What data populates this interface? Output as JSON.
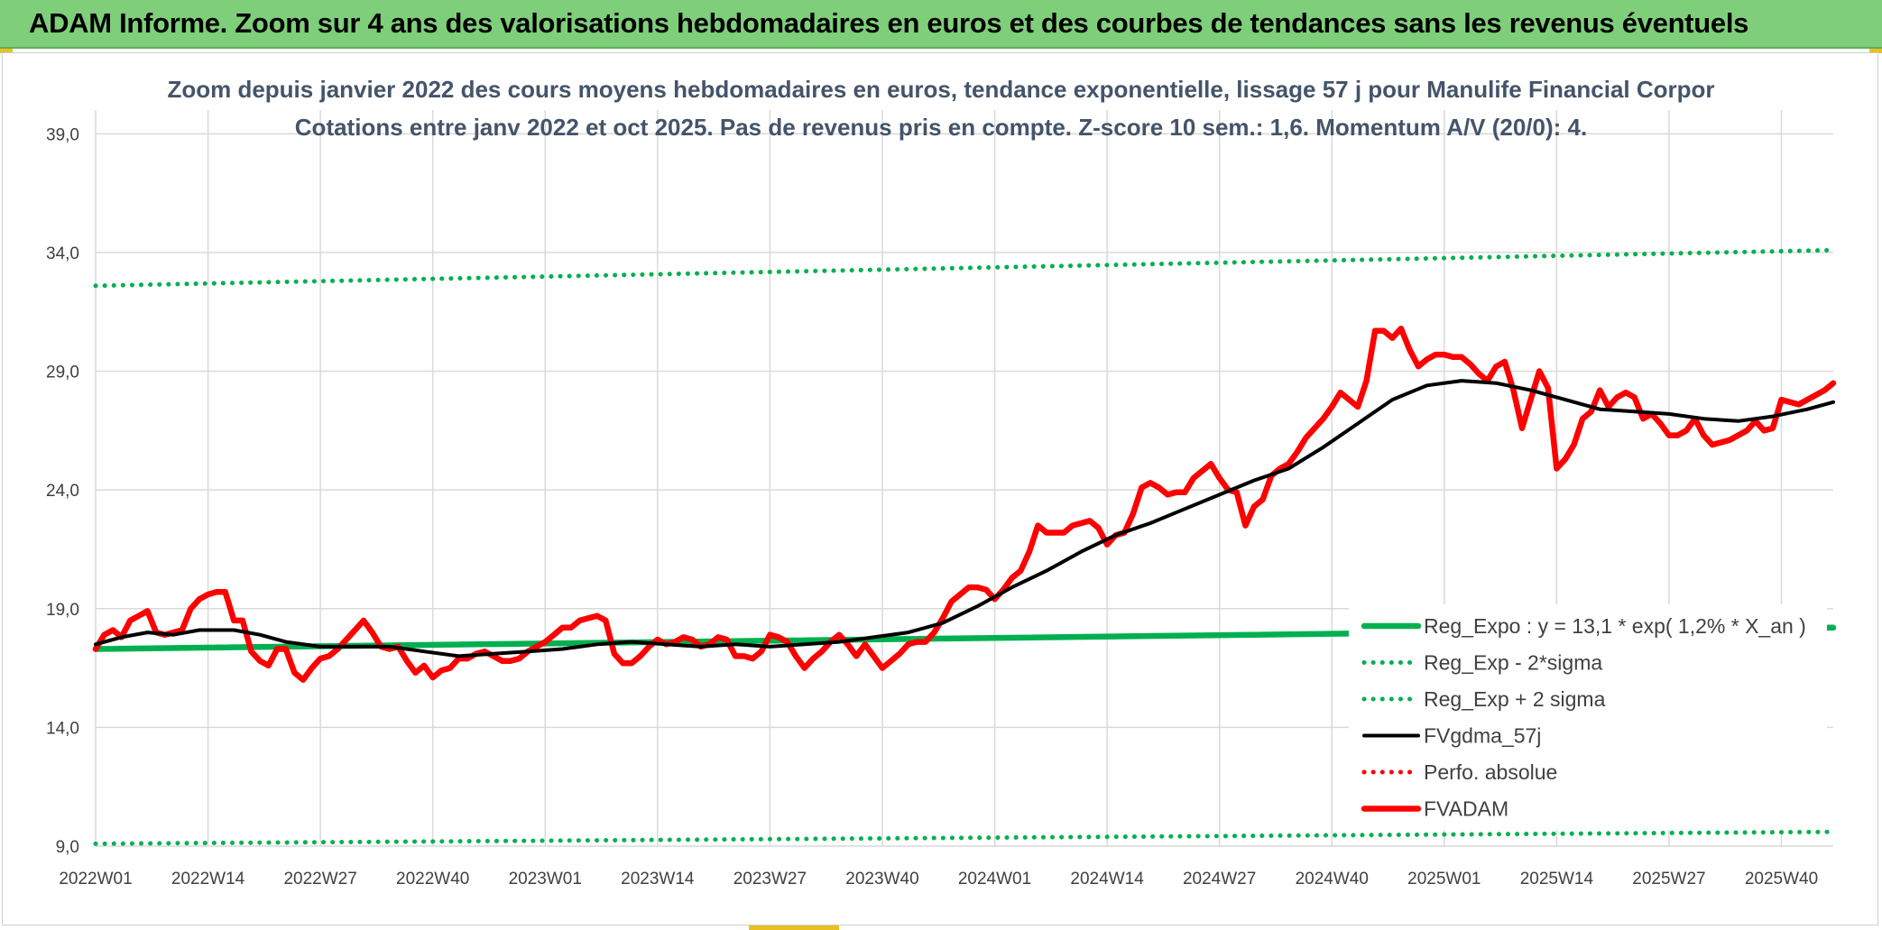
{
  "header": {
    "title": "ADAM Informe. Zoom sur 4 ans des valorisations hebdomadaires en euros et des courbes de tendances sans les revenus éventuels"
  },
  "chart_data": {
    "type": "line",
    "title": "Zoom depuis janvier 2022 des cours moyens hebdomadaires en euros, tendance exponentielle, lissage 57 j pour Manulife Financial Corpor",
    "subtitle": "Cotations entre janv 2022 et oct 2025. Pas de revenus pris en compte. Z-score 10 sem.: 1,6. Momentum A/V (20/0): 4.",
    "xlabel": "",
    "ylabel": "",
    "ylim": [
      9,
      40
    ],
    "y_ticks": [
      "39,0",
      "34,0",
      "29,0",
      "24,0",
      "19,0",
      "14,0",
      "9,0"
    ],
    "y_tick_values": [
      39,
      34,
      29,
      24,
      19,
      14,
      9
    ],
    "x_tick_labels": [
      "2022W01",
      "2022W14",
      "2022W27",
      "2022W40",
      "2023W01",
      "2023W14",
      "2023W27",
      "2023W40",
      "2024W01",
      "2024W14",
      "2024W27",
      "2024W40",
      "2025W01",
      "2025W14",
      "2025W27",
      "2025W40"
    ],
    "x_tick_index": [
      0,
      13,
      26,
      39,
      52,
      65,
      78,
      91,
      104,
      117,
      130,
      143,
      156,
      169,
      182,
      195
    ],
    "x_max_index": 201,
    "grid": true,
    "legend_position": "right",
    "series": [
      {
        "name": "Reg_Expo : y = 13,1 * exp( 1,2% *  X_an )",
        "style": "thick",
        "color": "#00b050",
        "points": [
          [
            0,
            17.3
          ],
          [
            201,
            18.2
          ]
        ]
      },
      {
        "name": "Reg_Exp - 2*sigma",
        "style": "dotted",
        "color": "#00b050",
        "points": [
          [
            0,
            9.1
          ],
          [
            201,
            9.6
          ]
        ]
      },
      {
        "name": "Reg_Exp + 2 sigma",
        "style": "dotted",
        "color": "#00b050",
        "points": [
          [
            0,
            32.6
          ],
          [
            201,
            34.1
          ]
        ]
      },
      {
        "name": "FVgdma_57j",
        "style": "solid",
        "color": "#000000",
        "points": [
          [
            0,
            17.5
          ],
          [
            3,
            17.8
          ],
          [
            6,
            18.0
          ],
          [
            9,
            17.9
          ],
          [
            12,
            18.1
          ],
          [
            16,
            18.1
          ],
          [
            19,
            17.9
          ],
          [
            22,
            17.6
          ],
          [
            26,
            17.4
          ],
          [
            30,
            17.4
          ],
          [
            34,
            17.4
          ],
          [
            38,
            17.2
          ],
          [
            42,
            17.0
          ],
          [
            46,
            17.1
          ],
          [
            50,
            17.2
          ],
          [
            54,
            17.3
          ],
          [
            58,
            17.5
          ],
          [
            62,
            17.6
          ],
          [
            66,
            17.5
          ],
          [
            70,
            17.4
          ],
          [
            74,
            17.5
          ],
          [
            78,
            17.4
          ],
          [
            82,
            17.5
          ],
          [
            86,
            17.6
          ],
          [
            90,
            17.8
          ],
          [
            94,
            18.0
          ],
          [
            98,
            18.4
          ],
          [
            102,
            19.1
          ],
          [
            106,
            19.9
          ],
          [
            110,
            20.6
          ],
          [
            114,
            21.4
          ],
          [
            118,
            22.1
          ],
          [
            122,
            22.6
          ],
          [
            126,
            23.2
          ],
          [
            130,
            23.8
          ],
          [
            134,
            24.4
          ],
          [
            138,
            24.9
          ],
          [
            142,
            25.8
          ],
          [
            146,
            26.8
          ],
          [
            150,
            27.8
          ],
          [
            154,
            28.4
          ],
          [
            158,
            28.6
          ],
          [
            162,
            28.5
          ],
          [
            166,
            28.2
          ],
          [
            170,
            27.8
          ],
          [
            174,
            27.4
          ],
          [
            178,
            27.3
          ],
          [
            182,
            27.2
          ],
          [
            186,
            27.0
          ],
          [
            190,
            26.9
          ],
          [
            194,
            27.1
          ],
          [
            198,
            27.4
          ],
          [
            201,
            27.7
          ]
        ]
      },
      {
        "name": "Perfo. absolue",
        "style": "dotted",
        "color": "#ff0000",
        "points": []
      },
      {
        "name": "FVADAM",
        "style": "thick",
        "color": "#ff0000",
        "points": [
          [
            0,
            17.3
          ],
          [
            1,
            17.9
          ],
          [
            2,
            18.1
          ],
          [
            3,
            17.8
          ],
          [
            4,
            18.5
          ],
          [
            5,
            18.7
          ],
          [
            6,
            18.9
          ],
          [
            7,
            18.0
          ],
          [
            8,
            17.9
          ],
          [
            9,
            18.0
          ],
          [
            10,
            18.1
          ],
          [
            11,
            19.0
          ],
          [
            12,
            19.4
          ],
          [
            13,
            19.6
          ],
          [
            14,
            19.7
          ],
          [
            15,
            19.7
          ],
          [
            16,
            18.5
          ],
          [
            17,
            18.5
          ],
          [
            18,
            17.2
          ],
          [
            19,
            16.8
          ],
          [
            20,
            16.6
          ],
          [
            21,
            17.3
          ],
          [
            22,
            17.3
          ],
          [
            23,
            16.3
          ],
          [
            24,
            16.0
          ],
          [
            25,
            16.5
          ],
          [
            26,
            16.9
          ],
          [
            27,
            17.0
          ],
          [
            28,
            17.3
          ],
          [
            29,
            17.7
          ],
          [
            30,
            18.1
          ],
          [
            31,
            18.5
          ],
          [
            32,
            18.0
          ],
          [
            33,
            17.4
          ],
          [
            34,
            17.3
          ],
          [
            35,
            17.4
          ],
          [
            36,
            16.8
          ],
          [
            37,
            16.3
          ],
          [
            38,
            16.6
          ],
          [
            39,
            16.1
          ],
          [
            40,
            16.4
          ],
          [
            41,
            16.5
          ],
          [
            42,
            16.9
          ],
          [
            43,
            16.9
          ],
          [
            44,
            17.1
          ],
          [
            45,
            17.2
          ],
          [
            46,
            17.0
          ],
          [
            47,
            16.8
          ],
          [
            48,
            16.8
          ],
          [
            49,
            16.9
          ],
          [
            50,
            17.2
          ],
          [
            51,
            17.4
          ],
          [
            52,
            17.6
          ],
          [
            53,
            17.9
          ],
          [
            54,
            18.2
          ],
          [
            55,
            18.2
          ],
          [
            56,
            18.5
          ],
          [
            57,
            18.6
          ],
          [
            58,
            18.7
          ],
          [
            59,
            18.5
          ],
          [
            60,
            17.1
          ],
          [
            61,
            16.7
          ],
          [
            62,
            16.7
          ],
          [
            63,
            17.0
          ],
          [
            64,
            17.4
          ],
          [
            65,
            17.7
          ],
          [
            66,
            17.5
          ],
          [
            67,
            17.6
          ],
          [
            68,
            17.8
          ],
          [
            69,
            17.7
          ],
          [
            70,
            17.4
          ],
          [
            71,
            17.5
          ],
          [
            72,
            17.8
          ],
          [
            73,
            17.7
          ],
          [
            74,
            17.0
          ],
          [
            75,
            17.0
          ],
          [
            76,
            16.9
          ],
          [
            77,
            17.2
          ],
          [
            78,
            17.9
          ],
          [
            79,
            17.8
          ],
          [
            80,
            17.6
          ],
          [
            81,
            17.0
          ],
          [
            82,
            16.5
          ],
          [
            83,
            16.9
          ],
          [
            84,
            17.2
          ],
          [
            85,
            17.6
          ],
          [
            86,
            17.9
          ],
          [
            87,
            17.5
          ],
          [
            88,
            17.0
          ],
          [
            89,
            17.5
          ],
          [
            90,
            17.0
          ],
          [
            91,
            16.5
          ],
          [
            92,
            16.8
          ],
          [
            93,
            17.1
          ],
          [
            94,
            17.5
          ],
          [
            95,
            17.6
          ],
          [
            96,
            17.6
          ],
          [
            97,
            18.0
          ],
          [
            98,
            18.6
          ],
          [
            99,
            19.3
          ],
          [
            100,
            19.6
          ],
          [
            101,
            19.9
          ],
          [
            102,
            19.9
          ],
          [
            103,
            19.8
          ],
          [
            104,
            19.4
          ],
          [
            105,
            19.8
          ],
          [
            106,
            20.3
          ],
          [
            107,
            20.6
          ],
          [
            108,
            21.4
          ],
          [
            109,
            22.5
          ],
          [
            110,
            22.2
          ],
          [
            111,
            22.2
          ],
          [
            112,
            22.2
          ],
          [
            113,
            22.5
          ],
          [
            114,
            22.6
          ],
          [
            115,
            22.7
          ],
          [
            116,
            22.4
          ],
          [
            117,
            21.7
          ],
          [
            118,
            22.1
          ],
          [
            119,
            22.2
          ],
          [
            120,
            23.0
          ],
          [
            121,
            24.1
          ],
          [
            122,
            24.3
          ],
          [
            123,
            24.1
          ],
          [
            124,
            23.8
          ],
          [
            125,
            23.9
          ],
          [
            126,
            23.9
          ],
          [
            127,
            24.5
          ],
          [
            128,
            24.8
          ],
          [
            129,
            25.1
          ],
          [
            130,
            24.5
          ],
          [
            131,
            24.0
          ],
          [
            132,
            23.9
          ],
          [
            133,
            22.5
          ],
          [
            134,
            23.3
          ],
          [
            135,
            23.6
          ],
          [
            136,
            24.6
          ],
          [
            137,
            24.9
          ],
          [
            138,
            25.1
          ],
          [
            139,
            25.6
          ],
          [
            140,
            26.2
          ],
          [
            141,
            26.6
          ],
          [
            142,
            27.0
          ],
          [
            143,
            27.5
          ],
          [
            144,
            28.1
          ],
          [
            145,
            27.8
          ],
          [
            146,
            27.5
          ],
          [
            147,
            28.6
          ],
          [
            148,
            30.7
          ],
          [
            149,
            30.7
          ],
          [
            150,
            30.4
          ],
          [
            151,
            30.8
          ],
          [
            152,
            29.9
          ],
          [
            153,
            29.2
          ],
          [
            154,
            29.5
          ],
          [
            155,
            29.7
          ],
          [
            156,
            29.7
          ],
          [
            157,
            29.6
          ],
          [
            158,
            29.6
          ],
          [
            159,
            29.3
          ],
          [
            160,
            28.9
          ],
          [
            161,
            28.6
          ],
          [
            162,
            29.2
          ],
          [
            163,
            29.4
          ],
          [
            164,
            28.2
          ],
          [
            165,
            26.6
          ],
          [
            166,
            27.8
          ],
          [
            167,
            29.0
          ],
          [
            168,
            28.3
          ],
          [
            169,
            24.9
          ],
          [
            170,
            25.3
          ],
          [
            171,
            25.9
          ],
          [
            172,
            27.0
          ],
          [
            173,
            27.3
          ],
          [
            174,
            28.2
          ],
          [
            175,
            27.5
          ],
          [
            176,
            27.9
          ],
          [
            177,
            28.1
          ],
          [
            178,
            27.9
          ],
          [
            179,
            27.0
          ],
          [
            180,
            27.2
          ],
          [
            181,
            26.8
          ],
          [
            182,
            26.3
          ],
          [
            183,
            26.3
          ],
          [
            184,
            26.5
          ],
          [
            185,
            27.0
          ],
          [
            186,
            26.3
          ],
          [
            187,
            25.9
          ],
          [
            188,
            26.0
          ],
          [
            189,
            26.1
          ],
          [
            190,
            26.3
          ],
          [
            191,
            26.5
          ],
          [
            192,
            26.9
          ],
          [
            193,
            26.5
          ],
          [
            194,
            26.6
          ],
          [
            195,
            27.8
          ],
          [
            196,
            27.7
          ],
          [
            197,
            27.6
          ],
          [
            198,
            27.8
          ],
          [
            199,
            28.0
          ],
          [
            200,
            28.2
          ],
          [
            201,
            28.5
          ]
        ]
      }
    ]
  }
}
